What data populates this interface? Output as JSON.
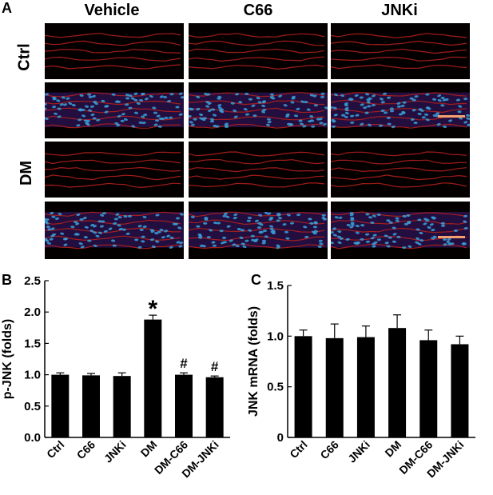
{
  "figure": {
    "panel_a_label": "A",
    "panel_b_label": "B",
    "panel_c_label": "C",
    "columns": [
      "Vehicle",
      "C66",
      "JNKi"
    ],
    "rows": [
      "Ctrl",
      "DM"
    ]
  },
  "colors": {
    "bar": "#000000",
    "tissue_red": "#b0201c",
    "nuclei_blue": "#3aa0d8",
    "scale_bar": "#f2a070"
  },
  "chart_data": [
    {
      "type": "bar",
      "categories": [
        "Ctrl",
        "C66",
        "JNKi",
        "DM",
        "DM-C66",
        "DM-JNKi"
      ],
      "values": [
        1.0,
        0.99,
        0.98,
        1.88,
        1.0,
        0.96
      ],
      "errors": [
        0.03,
        0.03,
        0.05,
        0.07,
        0.03,
        0.02
      ],
      "annotations": [
        "",
        "",
        "",
        "*",
        "#",
        "#"
      ],
      "ylabel": "p-JNK (folds)",
      "xlabel": "",
      "ylim": [
        0,
        2.5
      ],
      "yticks": [
        "0.0",
        "0.5",
        "1.0",
        "1.5",
        "2.0",
        "2.5"
      ]
    },
    {
      "type": "bar",
      "categories": [
        "Ctrl",
        "C66",
        "JNKi",
        "DM",
        "DM-C66",
        "DM-JNKi"
      ],
      "values": [
        1.0,
        0.98,
        0.99,
        1.08,
        0.96,
        0.92
      ],
      "errors": [
        0.06,
        0.14,
        0.11,
        0.13,
        0.1,
        0.08
      ],
      "annotations": [
        "",
        "",
        "",
        "",
        "",
        ""
      ],
      "ylabel": "JNK mRNA (folds)",
      "xlabel": "",
      "ylim": [
        0,
        1.5
      ],
      "yticks": [
        "0",
        "0.5",
        "1.0",
        "1.5"
      ]
    }
  ]
}
